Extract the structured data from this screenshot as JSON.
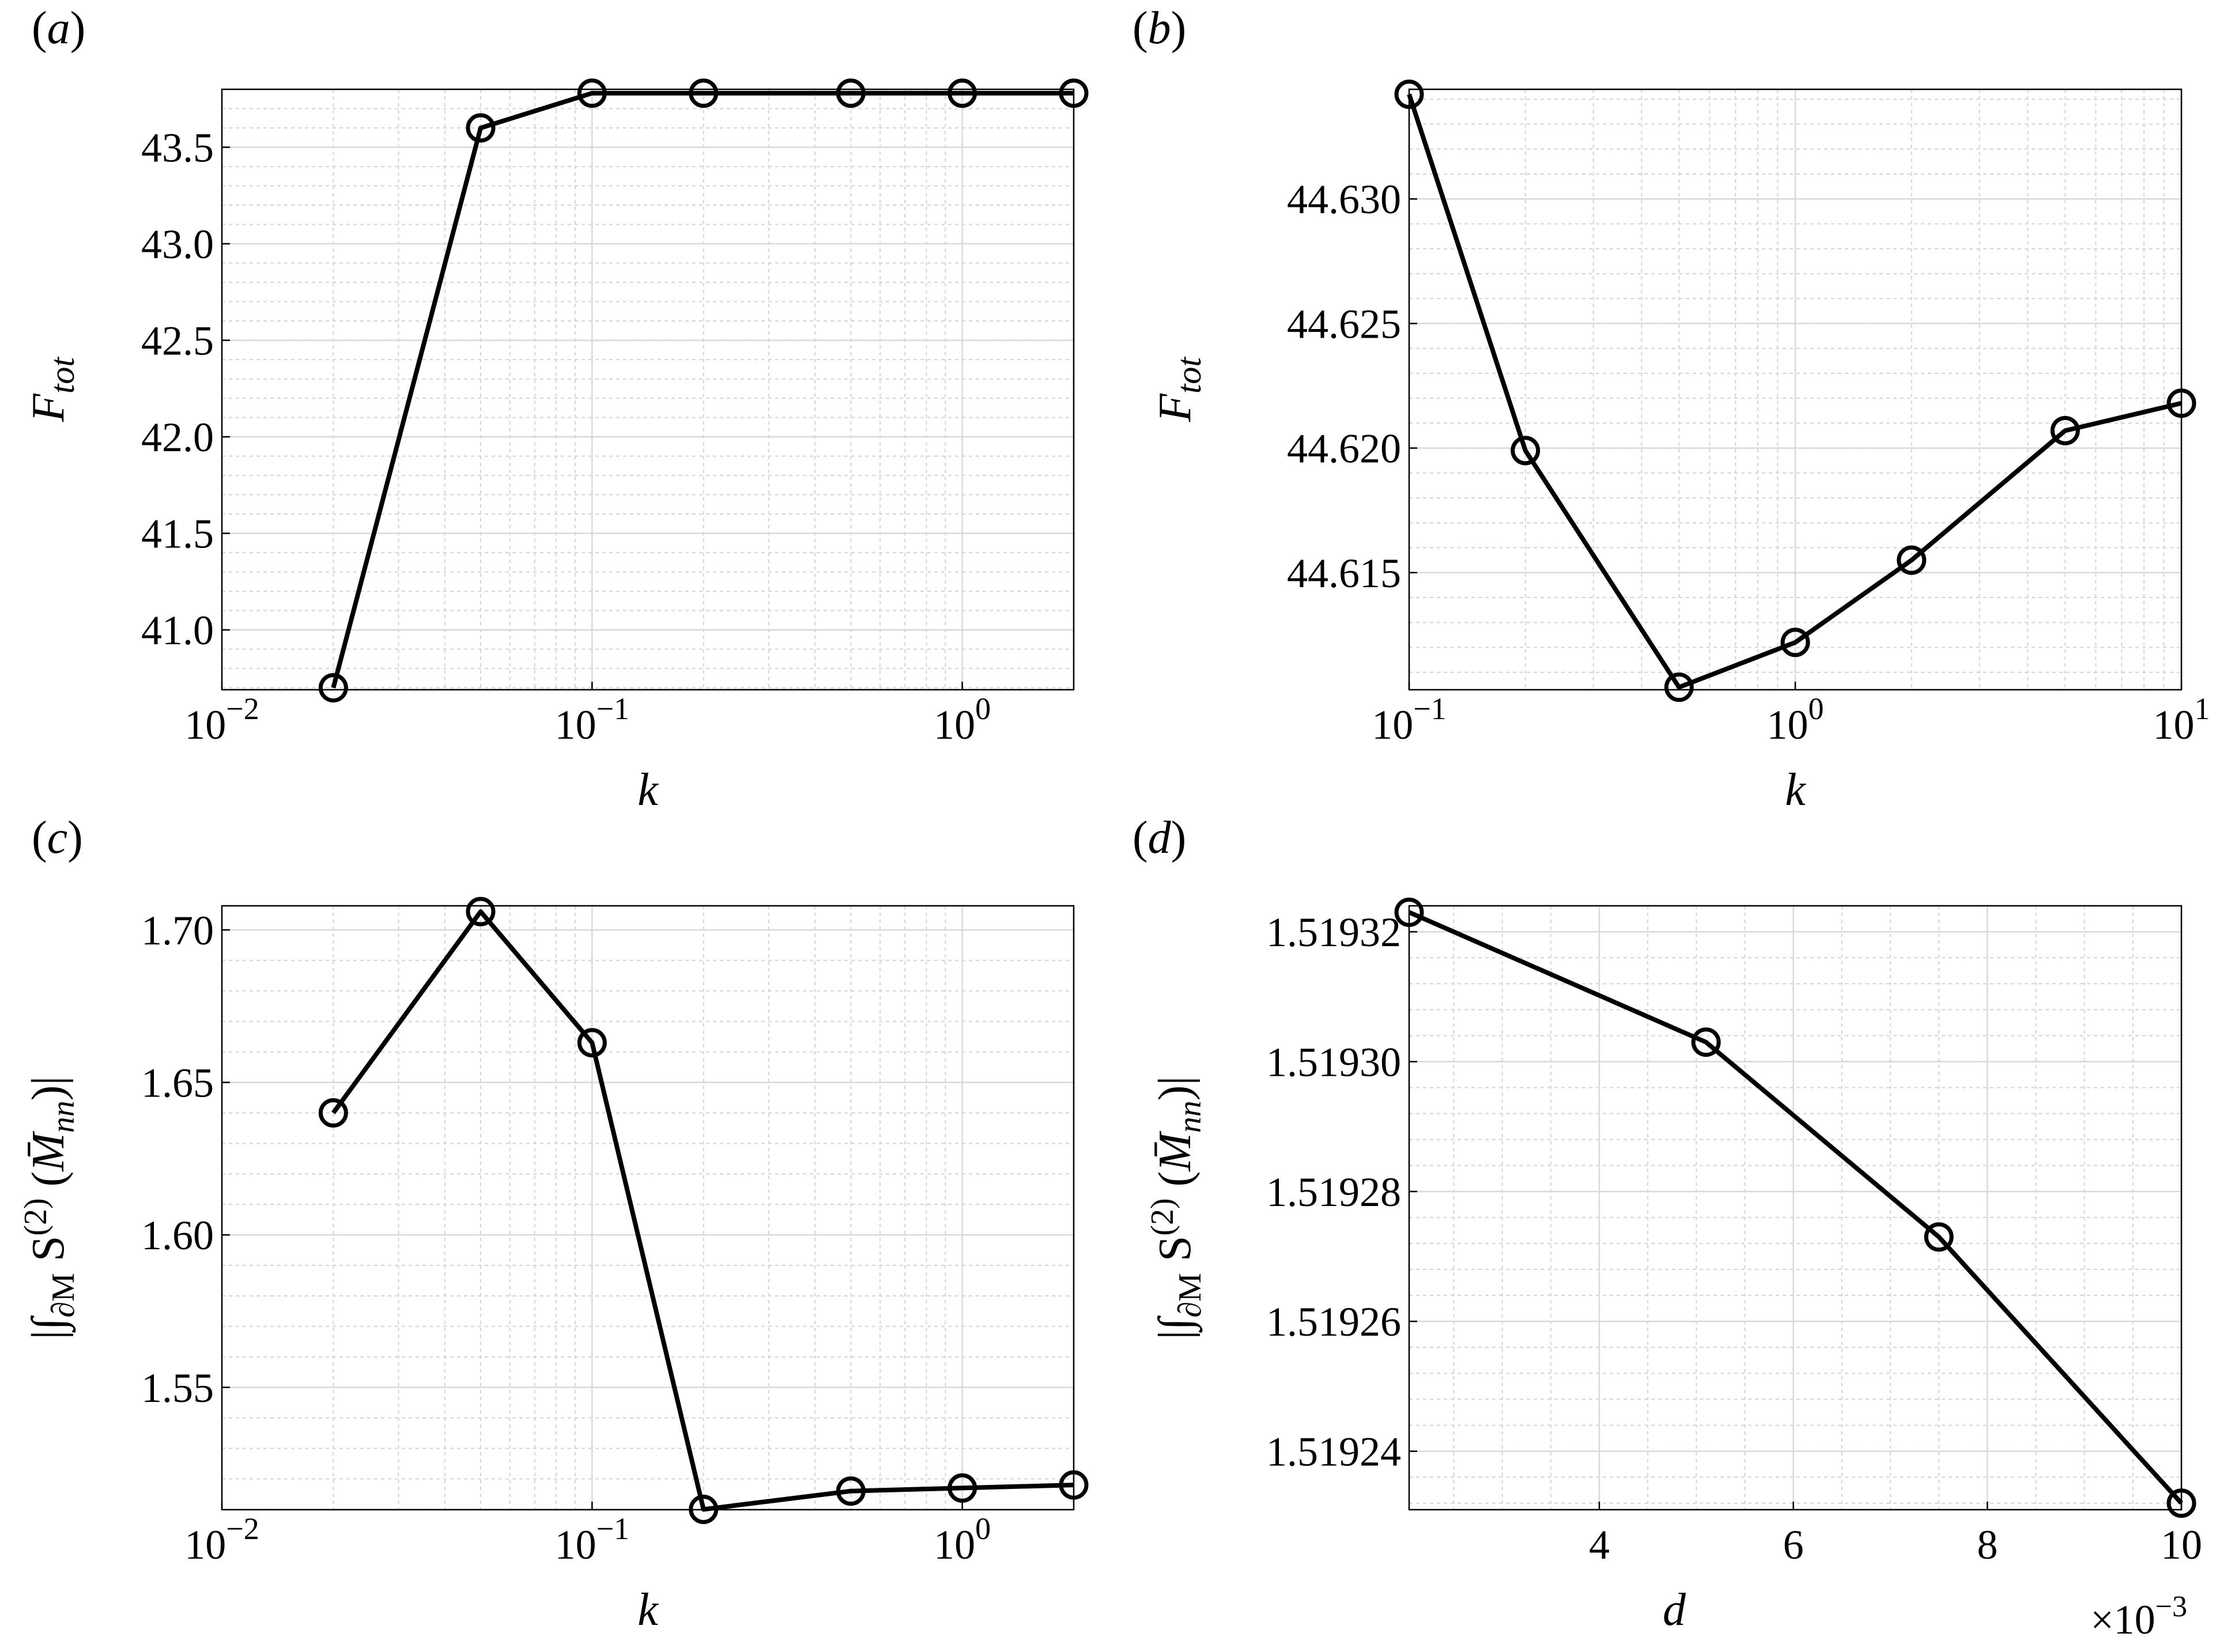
{
  "colors": {
    "line": "#000000",
    "grid": "#d9d9d9",
    "background": "#ffffff"
  },
  "chart_data": [
    {
      "panel": "(a)",
      "type": "line",
      "xscale": "log",
      "xlim": [
        0.01,
        2
      ],
      "ylim": [
        40.69,
        43.8
      ],
      "ylabel": "F_tot",
      "xlabel": "k",
      "x": [
        0.02,
        0.05,
        0.1,
        0.2,
        0.5,
        1,
        2
      ],
      "series": [
        {
          "values": [
            40.7,
            43.6,
            43.78,
            43.78,
            43.78,
            43.78,
            43.78
          ],
          "marker": "open-circle"
        }
      ],
      "xticks": [
        0.01,
        0.1,
        1
      ],
      "xtick_labels": [
        {
          "base": "10",
          "exp": "−2"
        },
        {
          "base": "10",
          "exp": "−1"
        },
        {
          "base": "10",
          "exp": "0"
        }
      ],
      "yticks": [
        41.0,
        41.5,
        42.0,
        42.5,
        43.0,
        43.5
      ],
      "ytick_labels": [
        "41.0",
        "41.5",
        "42.0",
        "42.5",
        "43.0",
        "43.5"
      ],
      "grid": true
    },
    {
      "panel": "(b)",
      "type": "line",
      "xscale": "log",
      "xlim": [
        0.1,
        10
      ],
      "ylim": [
        44.6103,
        44.6344
      ],
      "ylabel": "F_tot",
      "xlabel": "k",
      "x": [
        0.1,
        0.2,
        0.5,
        1,
        2,
        5,
        10
      ],
      "series": [
        {
          "values": [
            44.6342,
            44.6199,
            44.6104,
            44.6122,
            44.6155,
            44.6207,
            44.6218
          ],
          "marker": "open-circle"
        }
      ],
      "xticks": [
        0.1,
        1,
        10
      ],
      "xtick_labels": [
        {
          "base": "10",
          "exp": "−1"
        },
        {
          "base": "10",
          "exp": "0"
        },
        {
          "base": "10",
          "exp": "1"
        }
      ],
      "yticks": [
        44.615,
        44.62,
        44.625,
        44.63
      ],
      "ytick_labels": [
        "44.615",
        "44.620",
        "44.625",
        "44.630"
      ],
      "grid": true
    },
    {
      "panel": "(c)",
      "type": "line",
      "xscale": "log",
      "xlim": [
        0.01,
        2
      ],
      "ylim": [
        1.5099,
        1.7079
      ],
      "ylabel": "|∫∂M S(2) (M̄nn)|",
      "xlabel": "k",
      "x": [
        0.02,
        0.05,
        0.1,
        0.2,
        0.5,
        1,
        2
      ],
      "series": [
        {
          "values": [
            1.64,
            1.706,
            1.663,
            1.51,
            1.516,
            1.517,
            1.518
          ],
          "marker": "open-circle"
        }
      ],
      "xticks": [
        0.01,
        0.1,
        1
      ],
      "xtick_labels": [
        {
          "base": "10",
          "exp": "−2"
        },
        {
          "base": "10",
          "exp": "−1"
        },
        {
          "base": "10",
          "exp": "0"
        }
      ],
      "yticks": [
        1.55,
        1.6,
        1.65,
        1.7
      ],
      "ytick_labels": [
        "1.55",
        "1.60",
        "1.65",
        "1.70"
      ],
      "grid": true
    },
    {
      "panel": "(d)",
      "type": "line",
      "xscale": "linear",
      "xlim": [
        0.00204,
        0.01
      ],
      "ylim": [
        1.519231,
        1.519324
      ],
      "ylabel": "|∫∂M S(2) (M̄nn)|",
      "xlabel": "d",
      "x_multiplier_label": "×10−3",
      "x": [
        0.00204,
        0.0051,
        0.0075,
        0.01
      ],
      "series": [
        {
          "values": [
            1.519323,
            1.519303,
            1.519273,
            1.519232
          ],
          "marker": "open-circle"
        }
      ],
      "xticks": [
        0.004,
        0.006,
        0.008,
        0.01
      ],
      "xtick_labels": [
        "4",
        "6",
        "8",
        "10"
      ],
      "yticks": [
        1.51924,
        1.51926,
        1.51928,
        1.5193,
        1.51932
      ],
      "ytick_labels": [
        "1.51924",
        "1.51926",
        "1.51928",
        "1.51930",
        "1.51932"
      ],
      "grid": true
    }
  ]
}
